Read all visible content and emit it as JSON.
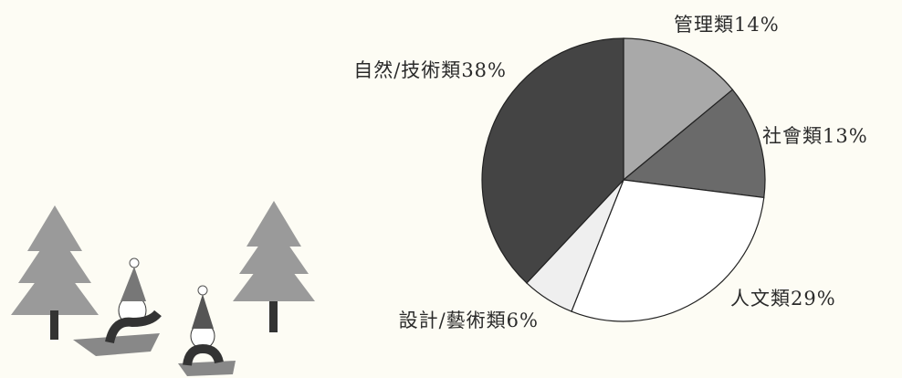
{
  "chart_data": {
    "type": "pie",
    "categories": [
      "管理類",
      "社會類",
      "人文類",
      "設計/藝術類",
      "自然/技術類"
    ],
    "values": [
      14,
      13,
      29,
      6,
      38
    ],
    "value_labels": [
      "14%",
      "13%",
      "29%",
      "6%",
      "38%"
    ],
    "colors": [
      "#a9a9a9",
      "#6a6a6a",
      "#ffffff",
      "#efefef",
      "#444444"
    ]
  }
}
